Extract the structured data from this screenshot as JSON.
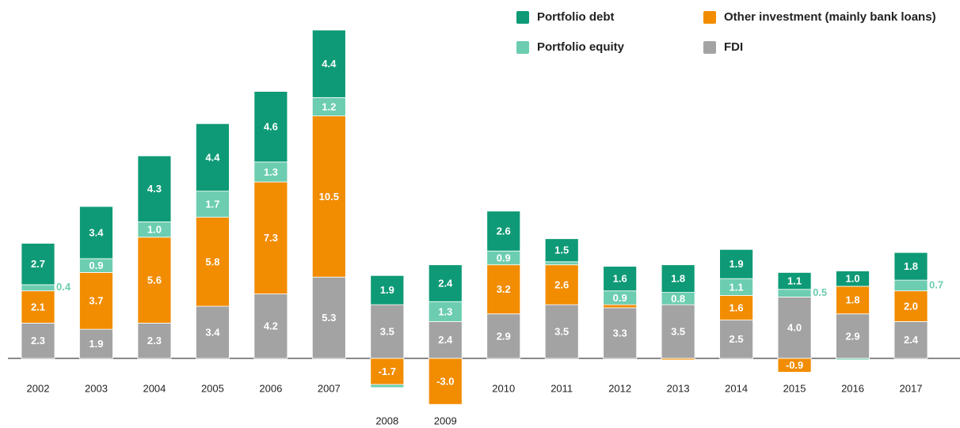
{
  "chart_data": {
    "type": "stacked-bar",
    "categories": [
      "2002",
      "2003",
      "2004",
      "2005",
      "2006",
      "2007",
      "2008",
      "2009",
      "2010",
      "2011",
      "2012",
      "2013",
      "2014",
      "2015",
      "2016",
      "2017"
    ],
    "series": [
      {
        "name": "FDI",
        "color": "#a3a3a3",
        "values": [
          2.3,
          1.9,
          2.3,
          3.4,
          4.2,
          5.3,
          3.5,
          2.4,
          2.9,
          3.5,
          3.3,
          3.5,
          2.5,
          4.0,
          2.9,
          2.4
        ],
        "value_labels": [
          null,
          null,
          null,
          null,
          null,
          null,
          null,
          null,
          null,
          null,
          null,
          null,
          null,
          "4.0",
          null,
          null
        ]
      },
      {
        "name": "Other investment (mainly bank loans)",
        "color": "#f28c00",
        "values": [
          2.1,
          3.7,
          5.6,
          5.8,
          7.3,
          10.5,
          -1.7,
          -3.0,
          3.2,
          2.6,
          0.2,
          -0.1,
          1.6,
          -0.9,
          1.8,
          2.0
        ],
        "value_labels": [
          null,
          null,
          null,
          null,
          null,
          null,
          null,
          "-3.0",
          null,
          null,
          "",
          "",
          null,
          null,
          null,
          "2.0"
        ]
      },
      {
        "name": "Portfolio equity",
        "color": "#6ccdb0",
        "values": [
          0.4,
          0.9,
          1.0,
          1.7,
          1.3,
          1.2,
          -0.2,
          1.3,
          0.9,
          0.2,
          0.9,
          0.8,
          1.1,
          0.5,
          -0.1,
          0.7
        ],
        "value_labels": [
          null,
          null,
          "1.0",
          null,
          null,
          null,
          "",
          null,
          null,
          "",
          null,
          null,
          null,
          null,
          "",
          null
        ]
      },
      {
        "name": "Portfolio debt",
        "color": "#0e9a76",
        "values": [
          2.7,
          3.4,
          4.3,
          4.4,
          4.6,
          4.4,
          1.9,
          2.4,
          2.6,
          1.5,
          1.6,
          1.8,
          1.9,
          1.1,
          1.0,
          1.8
        ],
        "value_labels": [
          null,
          null,
          null,
          null,
          null,
          null,
          null,
          null,
          null,
          null,
          null,
          null,
          null,
          null,
          "1.0",
          null
        ]
      }
    ]
  }
}
